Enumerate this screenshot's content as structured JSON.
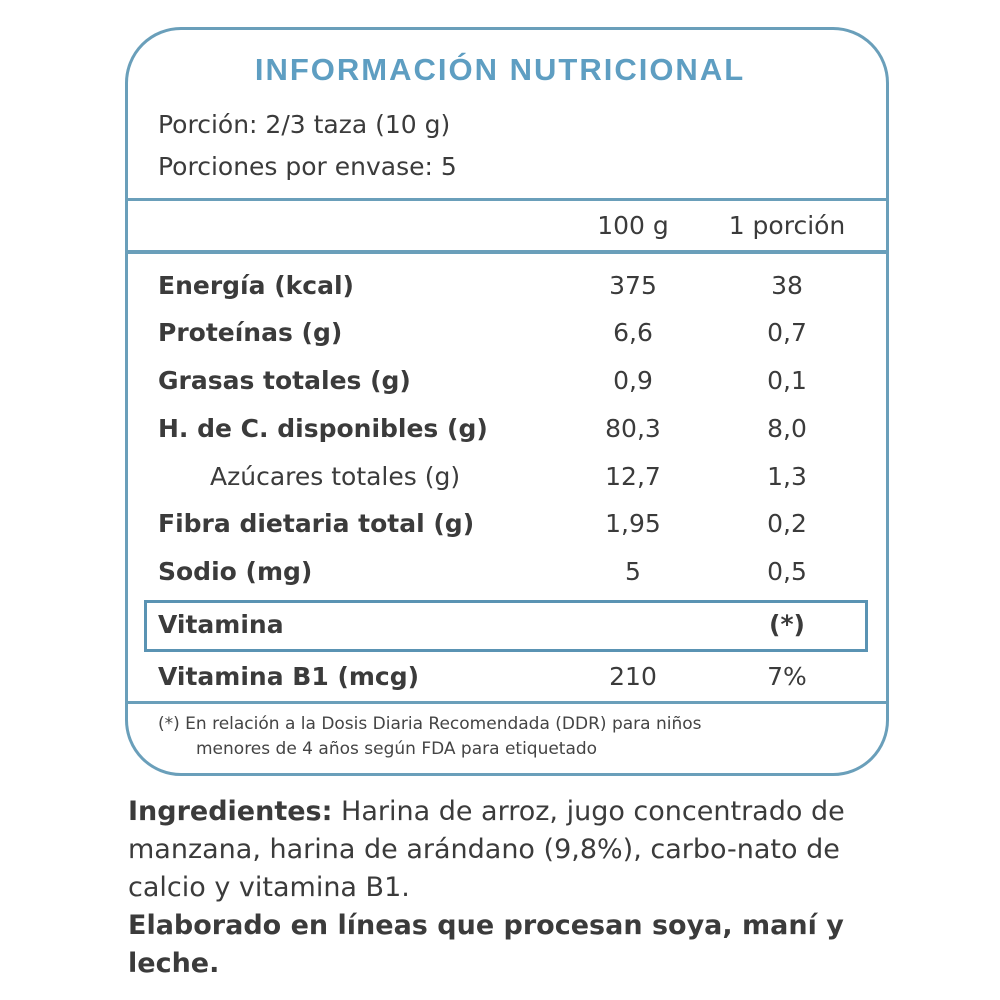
{
  "title": "INFORMACIÓN NUTRICIONAL",
  "serving": {
    "label": "Porción:",
    "value": "2/3 taza  (10 g)"
  },
  "servings_per_pack": {
    "label": "Porciones por envase:",
    "value": "5"
  },
  "columns": [
    "100 g",
    "1 porción"
  ],
  "rows": [
    {
      "name": "Energía (kcal)",
      "per100": "375",
      "perServing": "38"
    },
    {
      "name": "Proteínas (g)",
      "per100": "6,6",
      "perServing": "0,7"
    },
    {
      "name": "Grasas totales (g)",
      "per100": "0,9",
      "perServing": "0,1"
    },
    {
      "name": "H. de C. disponibles (g)",
      "per100": "80,3",
      "perServing": "8,0"
    },
    {
      "name": "Azúcares totales (g)",
      "per100": "12,7",
      "perServing": "1,3"
    },
    {
      "name": "Fibra dietaria total (g)",
      "per100": "1,95",
      "perServing": "0,2"
    },
    {
      "name": "Sodio (mg)",
      "per100": "5",
      "perServing": "0,5"
    }
  ],
  "vitamin_header": {
    "name": "Vitamina",
    "note": "(*)"
  },
  "vitamin_row": {
    "name": "Vitamina B1 (mcg)",
    "per100": "210",
    "perServing": "7%"
  },
  "footnote": {
    "line1": "(*) En relación a la Dosis Diaria Recomendada (DDR) para niños",
    "line2": "menores de 4 años según FDA para etiquetado"
  },
  "ingredients": {
    "label": "Ingredientes:",
    "text": " Harina de arroz, jugo concentrado de manzana, harina de arándano (9,8%), carbo-nato de calcio y vitamina B1."
  },
  "allergen": "Elaborado en líneas que procesan soya, maní y leche.",
  "colors": {
    "accent": "#6a9fba",
    "title": "#5e9ec2",
    "text": "#3b3b3b"
  }
}
